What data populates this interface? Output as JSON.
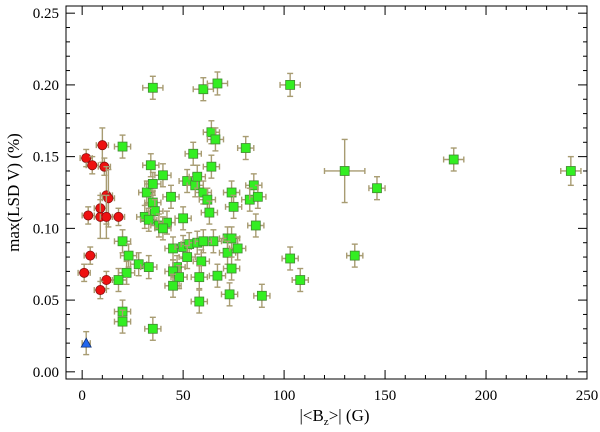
{
  "chart_data": {
    "type": "scatter",
    "title": "",
    "xlabel": "|<Bz>| (G)",
    "xlabel_parts": {
      "open": "|<B",
      "sub": "z",
      "close": ">| (G)"
    },
    "ylabel": "max(LSD V) (%)",
    "xlim": [
      -8,
      250
    ],
    "ylim": [
      -0.005,
      0.255
    ],
    "xticks": [
      0,
      50,
      100,
      150,
      200,
      250
    ],
    "yticks": [
      0.0,
      0.05,
      0.1,
      0.15,
      0.2,
      0.25
    ],
    "ytick_labels": [
      "0.00",
      "0.05",
      "0.10",
      "0.15",
      "0.20",
      "0.25"
    ],
    "colors": {
      "errorbar": "#a89c72",
      "square_fill": "#33ee22",
      "square_edge": "#448833",
      "circle_fill": "#ee1111",
      "circle_edge": "#881111",
      "triangle_fill": "#2266ee",
      "triangle_edge": "#113377"
    },
    "series": [
      {
        "name": "squares",
        "marker": "square",
        "points": [
          [
            35,
            0.198,
            5,
            0.008
          ],
          [
            60,
            0.197,
            5,
            0.008
          ],
          [
            67,
            0.201,
            5,
            0.008
          ],
          [
            103,
            0.2,
            5,
            0.008
          ],
          [
            64,
            0.167,
            4,
            0.008
          ],
          [
            66,
            0.162,
            4,
            0.008
          ],
          [
            81,
            0.156,
            4,
            0.008
          ],
          [
            20,
            0.157,
            4,
            0.008
          ],
          [
            55,
            0.152,
            4,
            0.008
          ],
          [
            130,
            0.14,
            10,
            0.022
          ],
          [
            184,
            0.148,
            5,
            0.008
          ],
          [
            242,
            0.14,
            5,
            0.01
          ],
          [
            146,
            0.128,
            4,
            0.008
          ],
          [
            34,
            0.144,
            4,
            0.008
          ],
          [
            64,
            0.143,
            4,
            0.008
          ],
          [
            40,
            0.137,
            4,
            0.008
          ],
          [
            32,
            0.125,
            4,
            0.008
          ],
          [
            35,
            0.131,
            4,
            0.008
          ],
          [
            52,
            0.133,
            4,
            0.008
          ],
          [
            56,
            0.13,
            4,
            0.008
          ],
          [
            57,
            0.136,
            4,
            0.008
          ],
          [
            60,
            0.125,
            4,
            0.008
          ],
          [
            74,
            0.125,
            4,
            0.008
          ],
          [
            85,
            0.13,
            4,
            0.008
          ],
          [
            44,
            0.122,
            4,
            0.008
          ],
          [
            62,
            0.12,
            4,
            0.008
          ],
          [
            35,
            0.118,
            4,
            0.008
          ],
          [
            83,
            0.12,
            4,
            0.008
          ],
          [
            87,
            0.122,
            4,
            0.008
          ],
          [
            75,
            0.115,
            4,
            0.008
          ],
          [
            36,
            0.112,
            4,
            0.008
          ],
          [
            31,
            0.108,
            4,
            0.008
          ],
          [
            33,
            0.106,
            4,
            0.008
          ],
          [
            50,
            0.107,
            4,
            0.008
          ],
          [
            63,
            0.111,
            4,
            0.008
          ],
          [
            38,
            0.102,
            4,
            0.008
          ],
          [
            42,
            0.104,
            4,
            0.008
          ],
          [
            40,
            0.1,
            4,
            0.008
          ],
          [
            86,
            0.102,
            4,
            0.008
          ],
          [
            65,
            0.091,
            4,
            0.008
          ],
          [
            72,
            0.093,
            4,
            0.008
          ],
          [
            74,
            0.093,
            4,
            0.008
          ],
          [
            45,
            0.086,
            4,
            0.008
          ],
          [
            50,
            0.087,
            4,
            0.008
          ],
          [
            53,
            0.089,
            4,
            0.008
          ],
          [
            57,
            0.09,
            4,
            0.008
          ],
          [
            60,
            0.091,
            4,
            0.008
          ],
          [
            20,
            0.091,
            4,
            0.008
          ],
          [
            52,
            0.08,
            4,
            0.008
          ],
          [
            72,
            0.083,
            4,
            0.008
          ],
          [
            77,
            0.086,
            4,
            0.008
          ],
          [
            23,
            0.081,
            4,
            0.008
          ],
          [
            28,
            0.075,
            4,
            0.008
          ],
          [
            33,
            0.073,
            4,
            0.008
          ],
          [
            22,
            0.069,
            4,
            0.008
          ],
          [
            47,
            0.073,
            4,
            0.008
          ],
          [
            59,
            0.077,
            4,
            0.008
          ],
          [
            74,
            0.072,
            4,
            0.008
          ],
          [
            45,
            0.07,
            4,
            0.008
          ],
          [
            48,
            0.066,
            4,
            0.008
          ],
          [
            58,
            0.066,
            4,
            0.008
          ],
          [
            67,
            0.067,
            4,
            0.008
          ],
          [
            103,
            0.079,
            4,
            0.008
          ],
          [
            135,
            0.081,
            4,
            0.008
          ],
          [
            18,
            0.064,
            4,
            0.008
          ],
          [
            108,
            0.064,
            4,
            0.008
          ],
          [
            45,
            0.06,
            4,
            0.008
          ],
          [
            73,
            0.054,
            4,
            0.008
          ],
          [
            89,
            0.053,
            4,
            0.008
          ],
          [
            58,
            0.049,
            4,
            0.008
          ],
          [
            20,
            0.042,
            4,
            0.008
          ],
          [
            20,
            0.035,
            4,
            0.008
          ],
          [
            35,
            0.03,
            4,
            0.008
          ]
        ]
      },
      {
        "name": "circles",
        "marker": "circle",
        "points": [
          [
            2,
            0.149,
            3,
            0.006
          ],
          [
            10,
            0.158,
            3,
            0.012
          ],
          [
            5,
            0.144,
            3,
            0.006
          ],
          [
            11,
            0.143,
            3,
            0.006
          ],
          [
            12,
            0.123,
            3,
            0.02
          ],
          [
            13,
            0.121,
            3,
            0.02
          ],
          [
            9,
            0.114,
            3,
            0.006
          ],
          [
            3,
            0.109,
            3,
            0.006
          ],
          [
            9,
            0.108,
            3,
            0.015
          ],
          [
            12,
            0.108,
            3,
            0.015
          ],
          [
            18,
            0.108,
            3,
            0.006
          ],
          [
            4,
            0.081,
            3,
            0.006
          ],
          [
            1,
            0.069,
            3,
            0.006
          ],
          [
            12,
            0.064,
            3,
            0.006
          ],
          [
            9,
            0.057,
            3,
            0.006
          ]
        ]
      },
      {
        "name": "triangles",
        "marker": "triangle",
        "points": [
          [
            2,
            0.02,
            2,
            0.008
          ]
        ]
      }
    ]
  }
}
